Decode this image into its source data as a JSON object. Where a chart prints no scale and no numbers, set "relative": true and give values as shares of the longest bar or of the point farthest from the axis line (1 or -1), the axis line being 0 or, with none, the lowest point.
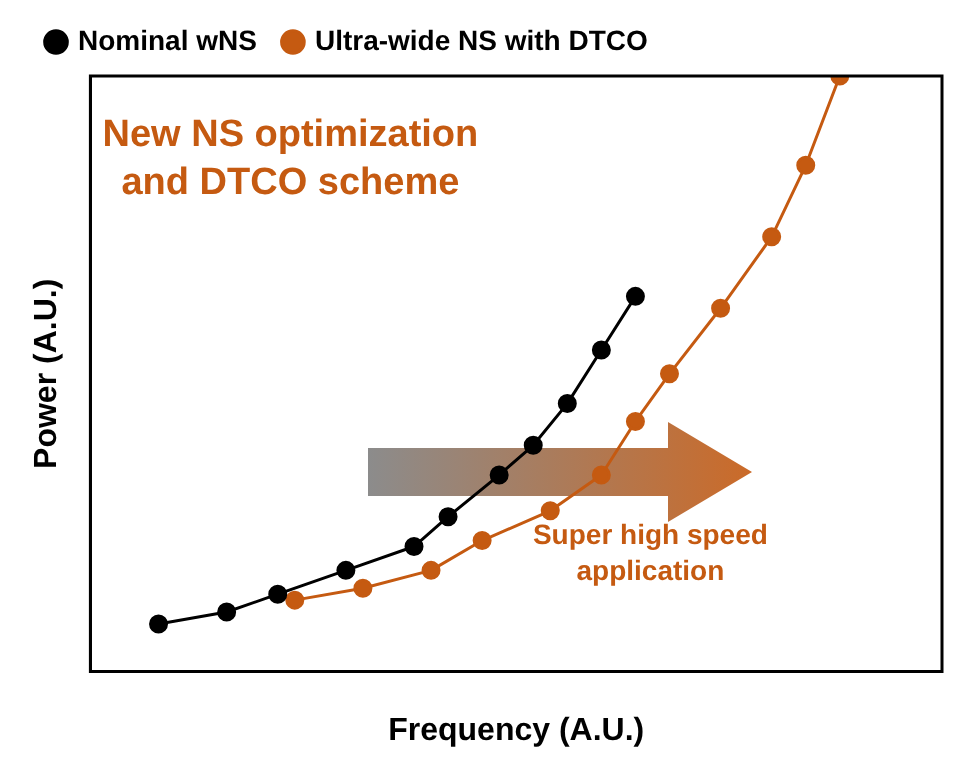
{
  "chart_data": {
    "type": "line",
    "relative": true,
    "xlabel": "Frequency (A.U.)",
    "ylabel": "Power (A.U.)",
    "legend": "top",
    "marker": "circle",
    "annotations": [
      "New NS optimization and DTCO scheme",
      "Super high speed application"
    ],
    "categories": [
      null,
      null,
      null,
      null,
      null,
      null,
      null,
      null,
      null,
      null,
      null,
      null,
      null,
      null,
      null,
      null,
      null,
      null,
      null,
      null,
      null,
      null,
      null,
      null,
      null,
      null,
      null,
      null,
      null,
      null,
      null,
      null,
      null,
      null,
      null,
      null,
      null,
      null,
      null,
      null,
      null,
      null,
      null,
      null,
      null,
      null,
      null,
      null,
      null,
      null,
      null
    ],
    "series": [
      {
        "name": "Nominal wNS",
        "color": "#000000",
        "values": [
          null,
          null,
          null,
          null,
          0.08,
          null,
          null,
          null,
          0.1,
          null,
          null,
          0.13,
          null,
          null,
          null,
          0.17,
          null,
          null,
          null,
          0.21,
          null,
          0.26,
          null,
          null,
          0.33,
          null,
          0.38,
          null,
          0.45,
          null,
          0.54,
          null,
          0.63,
          null,
          null,
          null,
          null,
          null,
          null,
          null,
          null,
          null,
          null,
          null,
          null,
          null,
          null,
          null,
          null,
          null,
          null
        ]
      },
      {
        "name": "Ultra-wide NS with DTCO",
        "color": "#c55a11",
        "values": [
          null,
          null,
          null,
          null,
          null,
          null,
          null,
          null,
          null,
          null,
          null,
          null,
          0.12,
          null,
          null,
          null,
          0.14,
          null,
          null,
          null,
          0.17,
          null,
          null,
          0.22,
          null,
          null,
          null,
          0.27,
          null,
          null,
          0.33,
          null,
          0.42,
          null,
          0.5,
          null,
          null,
          0.61,
          null,
          null,
          0.73,
          null,
          0.85,
          null,
          1,
          null,
          null,
          null,
          null,
          null,
          null
        ]
      }
    ]
  }
}
